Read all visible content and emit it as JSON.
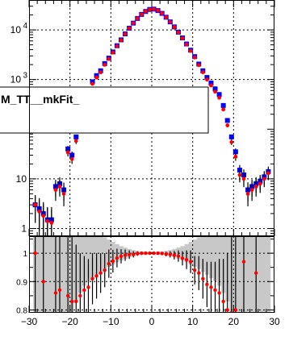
{
  "chart_data": [
    {
      "panel": "main",
      "type": "scatter",
      "yscale": "log",
      "xlim": [
        -30,
        30
      ],
      "ylim": [
        0.7,
        40000
      ],
      "ytick_labels": [
        {
          "value": 1,
          "label": "1"
        },
        {
          "value": 10,
          "label": "10"
        },
        {
          "value": 1000,
          "label": "10",
          "exp": "3"
        },
        {
          "value": 10000,
          "label": "10",
          "exp": "4"
        }
      ],
      "grid": true,
      "legend": {
        "placement": "middle-left",
        "entries": [
          {
            "label": "M_TT__mkFit_"
          }
        ]
      },
      "colors": {
        "series_a": "#0000ff",
        "series_b": "#ff0000"
      },
      "series": [
        {
          "color": "#0000ff",
          "marker": "square",
          "x": [
            -28.5,
            -27.5,
            -26.5,
            -25.5,
            -24.5,
            -23.5,
            -22.5,
            -21.5,
            -20.5,
            -19.5,
            -18.5,
            -17.5,
            -16.5,
            -15.5,
            -14.5,
            -13.5,
            -12.5,
            -11.5,
            -10.5,
            -9.5,
            -8.5,
            -7.5,
            -6.5,
            -5.5,
            -4.5,
            -3.5,
            -2.5,
            -1.5,
            -0.5,
            0.5,
            1.5,
            2.5,
            3.5,
            4.5,
            5.5,
            6.5,
            7.5,
            8.5,
            9.5,
            10.5,
            11.5,
            12.5,
            13.5,
            14.5,
            15.5,
            16.5,
            17.5,
            18.5,
            19.5,
            20.5,
            21.5,
            22.5,
            23.5,
            24.5,
            25.5,
            26.5,
            27.5,
            28.5
          ],
          "y": [
            3,
            2.5,
            2,
            1.5,
            1.5,
            7,
            8,
            6,
            40,
            30,
            70,
            150,
            300,
            600,
            900,
            1200,
            1500,
            2100,
            2700,
            3600,
            4800,
            6300,
            8300,
            10800,
            13700,
            17000,
            20500,
            23500,
            25800,
            26200,
            24500,
            21500,
            18000,
            14500,
            11500,
            9000,
            6900,
            5200,
            3900,
            2900,
            2050,
            1500,
            1100,
            850,
            650,
            500,
            300,
            150,
            70,
            35,
            15,
            12,
            6,
            7,
            8,
            9,
            11,
            14
          ],
          "yerr": [
            1.7,
            1.6,
            1.4,
            1.2,
            1.2,
            2.6,
            2.8,
            2.4,
            6,
            5.5,
            8,
            12,
            17,
            24,
            30,
            35,
            39,
            46,
            52,
            60,
            69,
            79,
            91,
            104,
            117,
            130,
            143,
            153,
            161,
            162,
            157,
            147,
            134,
            120,
            107,
            95,
            83,
            72,
            62,
            54,
            45,
            39,
            33,
            29,
            25,
            22,
            17,
            12,
            8,
            6,
            4,
            3.5,
            2.5,
            2.6,
            2.8,
            3,
            3.3,
            3.7
          ]
        },
        {
          "color": "#ff0000",
          "marker": "circle",
          "x": [
            -28.5,
            -27.5,
            -26.5,
            -25.5,
            -24.5,
            -23.5,
            -22.5,
            -21.5,
            -20.5,
            -19.5,
            -18.5,
            -17.5,
            -16.5,
            -15.5,
            -14.5,
            -13.5,
            -12.5,
            -11.5,
            -10.5,
            -9.5,
            -8.5,
            -7.5,
            -6.5,
            -5.5,
            -4.5,
            -3.5,
            -2.5,
            -1.5,
            -0.5,
            0.5,
            1.5,
            2.5,
            3.5,
            4.5,
            5.5,
            6.5,
            7.5,
            8.5,
            9.5,
            10.5,
            11.5,
            12.5,
            13.5,
            14.5,
            15.5,
            16.5,
            17.5,
            18.5,
            19.5,
            20.5,
            21.5,
            22.5,
            23.5,
            24.5,
            25.5,
            26.5,
            27.5,
            28.5
          ],
          "y": [
            3,
            2.2,
            1.8,
            1.4,
            1.3,
            6,
            7,
            5,
            34,
            25,
            58,
            128,
            260,
            530,
            820,
            1100,
            1400,
            1980,
            2600,
            3500,
            4720,
            6230,
            8250,
            10750,
            13650,
            16980,
            20500,
            23500,
            25800,
            26200,
            24500,
            21480,
            17950,
            14450,
            11420,
            8900,
            6780,
            5080,
            3780,
            2780,
            1950,
            1400,
            1000,
            760,
            570,
            430,
            250,
            120,
            55,
            28,
            12,
            10,
            5,
            6,
            7,
            8,
            10,
            13
          ],
          "yerr": [
            1.7,
            1.5,
            1.3,
            1.2,
            1.1,
            2.4,
            2.6,
            2.2,
            5.8,
            5,
            7.6,
            11,
            16,
            23,
            29,
            33,
            37,
            44,
            51,
            59,
            69,
            79,
            91,
            104,
            117,
            130,
            143,
            153,
            161,
            162,
            157,
            147,
            134,
            120,
            107,
            94,
            82,
            71,
            61,
            53,
            44,
            37,
            32,
            28,
            24,
            21,
            16,
            11,
            7,
            5,
            3.5,
            3.2,
            2.2,
            2.4,
            2.6,
            2.8,
            3.2,
            3.6
          ]
        }
      ]
    },
    {
      "panel": "ratio",
      "type": "scatter",
      "xlim": [
        -30,
        30
      ],
      "ylim": [
        0.79,
        1.06
      ],
      "yticks": [
        0.8,
        0.9,
        1
      ],
      "ytick_labels": [
        "0.8",
        "0.9",
        "1"
      ],
      "xticks": [
        -30,
        -20,
        -10,
        0,
        10,
        20,
        30
      ],
      "xtick_labels": [
        "−30",
        "−20",
        "−10",
        "0",
        "10",
        "20",
        "30"
      ],
      "grid": true,
      "band_color": "#c8c8c8",
      "band": {
        "x": [
          -28.5,
          -27.5,
          -26.5,
          -25.5,
          -24.5,
          -23.5,
          -22.5,
          -21.5,
          -20.5,
          -19.5,
          -18.5,
          -17.5,
          -16.5,
          -15.5,
          -14.5,
          -13.5,
          -12.5,
          -11.5,
          -10.5,
          -9.5,
          -8.5,
          -7.5,
          -6.5,
          -5.5,
          -4.5,
          -3.5,
          -2.5,
          -1.5,
          -0.5,
          0.5,
          1.5,
          2.5,
          3.5,
          4.5,
          5.5,
          6.5,
          7.5,
          8.5,
          9.5,
          10.5,
          11.5,
          12.5,
          13.5,
          14.5,
          15.5,
          16.5,
          17.5,
          18.5,
          19.5,
          20.5,
          21.5,
          22.5,
          23.5,
          24.5,
          25.5,
          26.5,
          27.5,
          28.5
        ],
        "half_width": [
          0.5,
          0.5,
          0.5,
          0.5,
          0.5,
          0.5,
          0.5,
          0.5,
          0.5,
          0.5,
          0.17,
          0.14,
          0.115,
          0.098,
          0.088,
          0.076,
          0.066,
          0.056,
          0.048,
          0.04,
          0.032,
          0.025,
          0.02,
          0.015,
          0.011,
          0.008,
          0.006,
          0.005,
          0.004,
          0.004,
          0.005,
          0.006,
          0.008,
          0.011,
          0.015,
          0.02,
          0.025,
          0.032,
          0.04,
          0.048,
          0.056,
          0.066,
          0.076,
          0.088,
          0.098,
          0.115,
          0.14,
          0.17,
          0.5,
          0.5,
          0.5,
          0.5,
          0.5,
          0.5,
          0.5,
          0.5,
          0.5,
          0.5
        ]
      },
      "points": {
        "color": "#ff0000",
        "x": [
          -28.5,
          -26.5,
          -23.5,
          -22.5,
          -20.5,
          -19.5,
          -18.5,
          -17.5,
          -16.5,
          -15.5,
          -14.5,
          -13.5,
          -12.5,
          -11.5,
          -10.5,
          -9.5,
          -8.5,
          -7.5,
          -6.5,
          -5.5,
          -4.5,
          -3.5,
          -2.5,
          -1.5,
          -0.5,
          0.5,
          1.5,
          2.5,
          3.5,
          4.5,
          5.5,
          6.5,
          7.5,
          8.5,
          9.5,
          10.5,
          11.5,
          12.5,
          13.5,
          14.5,
          15.5,
          16.5,
          17.5,
          18.5,
          19.5,
          20.5,
          22.5,
          25.5
        ],
        "y": [
          1.0,
          0.9,
          0.86,
          0.87,
          0.85,
          0.83,
          0.83,
          0.85,
          0.87,
          0.88,
          0.91,
          0.92,
          0.93,
          0.94,
          0.963,
          0.972,
          0.983,
          0.989,
          0.993,
          0.995,
          0.996,
          0.999,
          1.0,
          1.0,
          1.0,
          1.0,
          1.0,
          0.999,
          0.997,
          0.996,
          0.993,
          0.99,
          0.982,
          0.977,
          0.97,
          0.94,
          0.93,
          0.91,
          0.89,
          0.88,
          0.87,
          0.86,
          0.83,
          0.8,
          0.79,
          0.8,
          0.97,
          0.93
        ],
        "yerr": [
          0.5,
          0.5,
          0.5,
          0.5,
          0.5,
          0.5,
          0.2,
          0.15,
          0.12,
          0.1,
          0.09,
          0.08,
          0.07,
          0.06,
          0.05,
          0.04,
          0.033,
          0.025,
          0.02,
          0.015,
          0.011,
          0.008,
          0.006,
          0.005,
          0.004,
          0.004,
          0.005,
          0.006,
          0.008,
          0.011,
          0.015,
          0.02,
          0.025,
          0.033,
          0.04,
          0.05,
          0.06,
          0.07,
          0.08,
          0.09,
          0.1,
          0.12,
          0.15,
          0.2,
          0.5,
          0.5,
          0.5,
          0.5
        ]
      }
    }
  ]
}
